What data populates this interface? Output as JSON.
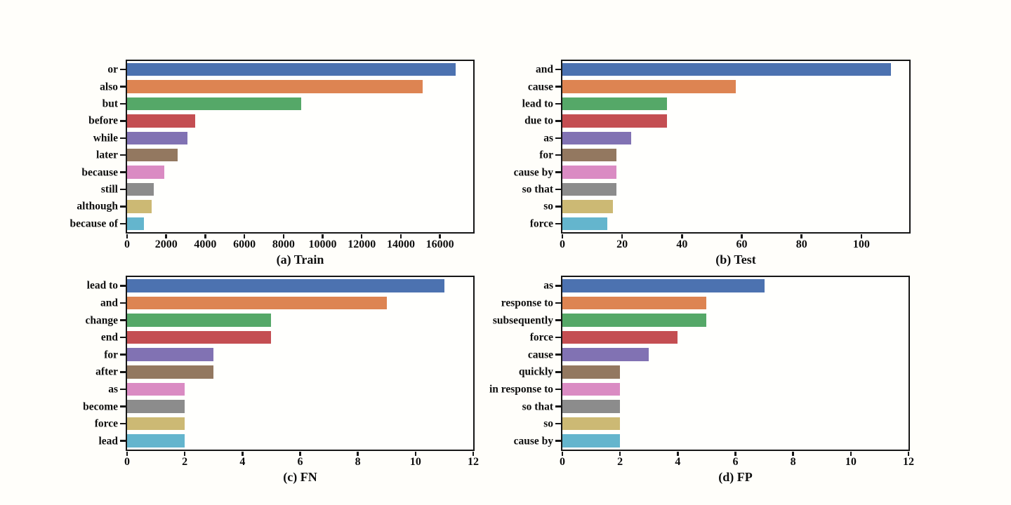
{
  "figure": {
    "background_color": "#fffefa",
    "axis_color": "#161616",
    "plot_background": "#fffffd"
  },
  "palette": [
    "#4C72B0",
    "#DD8452",
    "#55A868",
    "#C44E52",
    "#8172B3",
    "#937860",
    "#DA8BC3",
    "#8C8C8C",
    "#CCB974",
    "#64B5CD"
  ],
  "chart_data": [
    {
      "id": "train",
      "type": "bar",
      "orientation": "horizontal",
      "title": "(a) Train",
      "categories": [
        "or",
        "also",
        "but",
        "before",
        "while",
        "later",
        "because",
        "still",
        "although",
        "because of"
      ],
      "values": [
        16800,
        15100,
        8900,
        3500,
        3100,
        2600,
        1900,
        1350,
        1250,
        850
      ],
      "xlim": [
        0,
        17700
      ],
      "xticks": [
        0,
        2000,
        4000,
        6000,
        8000,
        10000,
        12000,
        14000,
        16000
      ],
      "grid": false,
      "legend": null
    },
    {
      "id": "test",
      "type": "bar",
      "orientation": "horizontal",
      "title": "(b) Test",
      "categories": [
        "and",
        "cause",
        "lead to",
        "due to",
        "as",
        "for",
        "cause by",
        "so that",
        "so",
        "force"
      ],
      "values": [
        110,
        58,
        35,
        35,
        23,
        18,
        18,
        18,
        17,
        15
      ],
      "xlim": [
        0,
        116
      ],
      "xticks": [
        0,
        20,
        40,
        60,
        80,
        100
      ],
      "grid": false,
      "legend": null
    },
    {
      "id": "fn",
      "type": "bar",
      "orientation": "horizontal",
      "title": "(c) FN",
      "categories": [
        "lead to",
        "and",
        "change",
        "end",
        "for",
        "after",
        "as",
        "become",
        "force",
        "lead"
      ],
      "values": [
        11,
        9,
        5,
        5,
        3,
        3,
        2,
        2,
        2,
        2
      ],
      "xlim": [
        0,
        12
      ],
      "xticks": [
        0,
        2,
        4,
        6,
        8,
        10,
        12
      ],
      "grid": false,
      "legend": null
    },
    {
      "id": "fp",
      "type": "bar",
      "orientation": "horizontal",
      "title": "(d) FP",
      "categories": [
        "as",
        "response to",
        "subsequently",
        "force",
        "cause",
        "quickly",
        "in response to",
        "so that",
        "so",
        "cause by"
      ],
      "values": [
        7,
        5,
        5,
        4,
        3,
        2,
        2,
        2,
        2,
        2
      ],
      "xlim": [
        0,
        12
      ],
      "xticks": [
        0,
        2,
        4,
        6,
        8,
        10,
        12
      ],
      "grid": false,
      "legend": null
    }
  ]
}
